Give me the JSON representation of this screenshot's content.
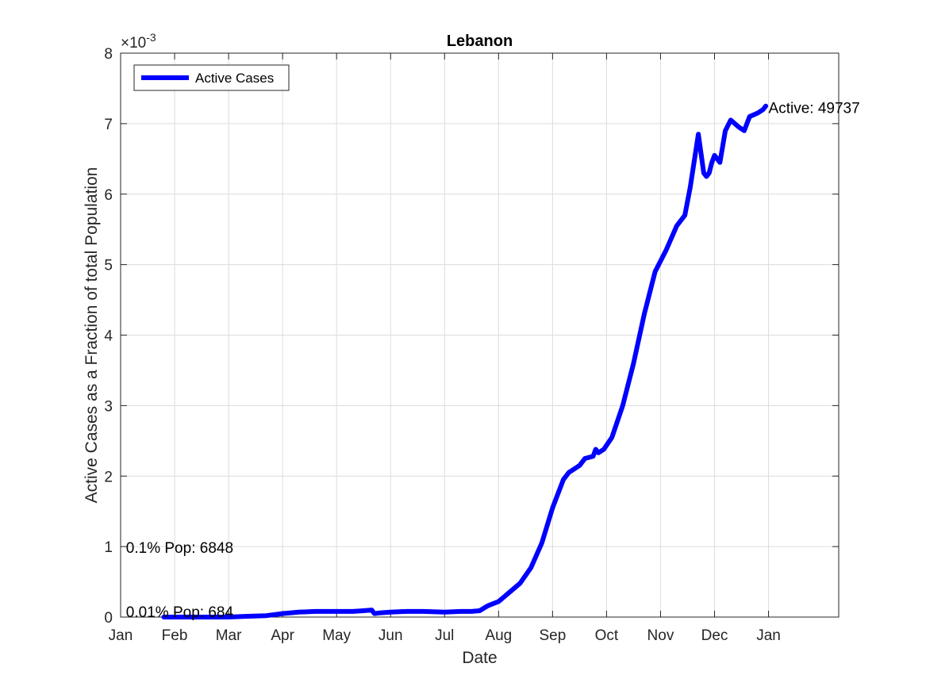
{
  "chart_data": {
    "type": "line",
    "title": "Lebanon",
    "xlabel": "Date",
    "ylabel": "Active Cases as a Fraction of total Population",
    "y_exponent_label": "×10",
    "y_exponent_power": "-3",
    "xlim": [
      0,
      13.3
    ],
    "ylim": [
      0,
      8
    ],
    "grid": true,
    "x_tick_positions": [
      0,
      1,
      2,
      3,
      4,
      5,
      6,
      7,
      8,
      9,
      10,
      11,
      12
    ],
    "x_tick_labels": [
      "Jan",
      "Feb",
      "Mar",
      "Apr",
      "May",
      "Jun",
      "Jul",
      "Aug",
      "Sep",
      "Oct",
      "Nov",
      "Dec",
      "Jan"
    ],
    "y_ticks": [
      0,
      1,
      2,
      3,
      4,
      5,
      6,
      7,
      8
    ],
    "y_tick_labels": [
      "0",
      "1",
      "2",
      "3",
      "4",
      "5",
      "6",
      "7",
      "8"
    ],
    "legend": {
      "position": "top-left",
      "entries": [
        "Active Cases"
      ]
    },
    "series": [
      {
        "name": "Active Cases",
        "color": "#0000ff",
        "x": [
          0.8,
          1.0,
          1.5,
          2.0,
          2.3,
          2.7,
          3.0,
          3.3,
          3.6,
          4.0,
          4.3,
          4.5,
          4.65,
          4.7,
          4.8,
          5.0,
          5.3,
          5.6,
          6.0,
          6.3,
          6.5,
          6.65,
          6.8,
          7.0,
          7.2,
          7.4,
          7.6,
          7.8,
          8.0,
          8.2,
          8.3,
          8.5,
          8.6,
          8.75,
          8.8,
          8.85,
          8.95,
          9.1,
          9.3,
          9.5,
          9.7,
          9.9,
          10.1,
          10.3,
          10.45,
          10.55,
          10.7,
          10.8,
          10.85,
          10.9,
          10.95,
          11.0,
          11.1,
          11.2,
          11.3,
          11.45,
          11.55,
          11.65,
          11.8,
          11.9,
          11.95
        ],
        "y": [
          0.0,
          0.0,
          0.0,
          0.0,
          0.01,
          0.02,
          0.05,
          0.07,
          0.08,
          0.08,
          0.08,
          0.09,
          0.1,
          0.05,
          0.06,
          0.07,
          0.08,
          0.08,
          0.07,
          0.08,
          0.08,
          0.09,
          0.16,
          0.22,
          0.35,
          0.48,
          0.7,
          1.05,
          1.55,
          1.95,
          2.05,
          2.15,
          2.25,
          2.28,
          2.38,
          2.33,
          2.38,
          2.55,
          3.0,
          3.6,
          4.3,
          4.9,
          5.2,
          5.55,
          5.7,
          6.1,
          6.85,
          6.3,
          6.25,
          6.3,
          6.45,
          6.55,
          6.45,
          6.9,
          7.05,
          6.95,
          6.9,
          7.1,
          7.15,
          7.2,
          7.25
        ]
      }
    ],
    "annotations": [
      {
        "text": "Active: 49737",
        "x": 12.0,
        "y": 7.23
      },
      {
        "text": "0.1% Pop: 6848",
        "x": 0.1,
        "y": 0.99
      },
      {
        "text": "0.01% Pop: 684",
        "x": 0.1,
        "y": 0.08
      }
    ]
  }
}
